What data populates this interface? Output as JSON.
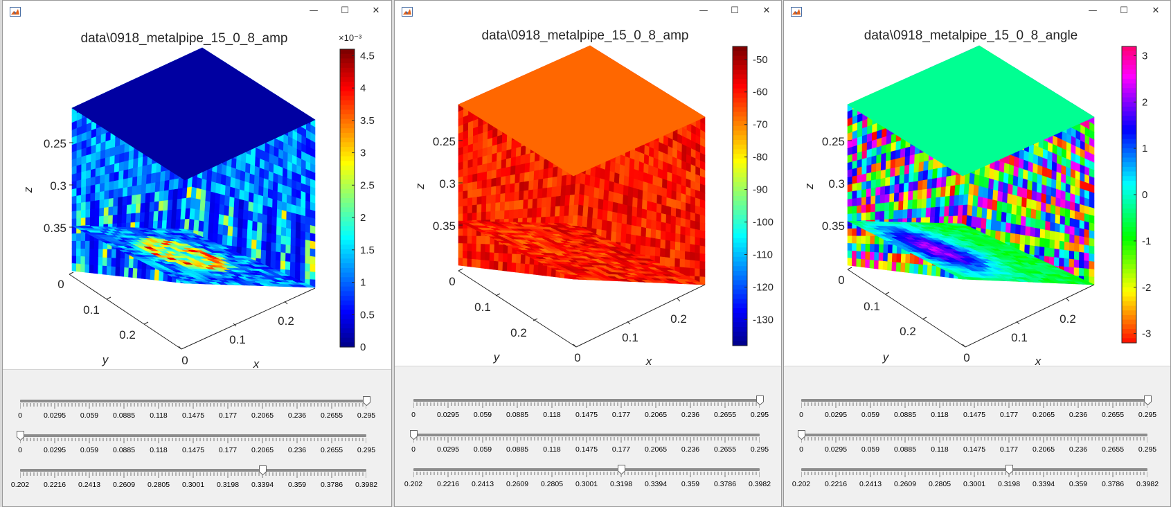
{
  "windows": [
    {
      "id": "w1",
      "title": "data\\0918_metalpipe_15_0_8_amp",
      "colormap": "jet",
      "field": "amp",
      "colorbar": {
        "ticks": [
          "0",
          "0.5",
          "1",
          "1.5",
          "2",
          "2.5",
          "3",
          "3.5",
          "4",
          "4.5"
        ],
        "exponent": "×10⁻³",
        "range": [
          0,
          4.6
        ]
      },
      "axes": {
        "z_ticks": [
          "0.25",
          "0.3",
          "0.35"
        ],
        "y_ticks": [
          "0",
          "0.1",
          "0.2"
        ],
        "x_ticks": [
          "0",
          "0.1",
          "0.2"
        ],
        "xlabel": "x",
        "ylabel": "y",
        "zlabel": "z"
      },
      "sliders": [
        {
          "labels": [
            "0",
            "0.0295",
            "0.059",
            "0.0885",
            "0.118",
            "0.1475",
            "0.177",
            "0.2065",
            "0.236",
            "0.2655",
            "0.295"
          ],
          "value": 0.295,
          "min": 0,
          "max": 0.295
        },
        {
          "labels": [
            "0",
            "0.0295",
            "0.059",
            "0.0885",
            "0.118",
            "0.1475",
            "0.177",
            "0.2065",
            "0.236",
            "0.2655",
            "0.295"
          ],
          "value": 0,
          "min": 0,
          "max": 0.295
        },
        {
          "labels": [
            "0.202",
            "0.2216",
            "0.2413",
            "0.2609",
            "0.2805",
            "0.3001",
            "0.3198",
            "0.3394",
            "0.359",
            "0.3786",
            "0.3982"
          ],
          "value": 0.3394,
          "min": 0.202,
          "max": 0.3982
        }
      ]
    },
    {
      "id": "w2",
      "title": "data\\0918_metalpipe_15_0_8_amp",
      "colormap": "jet",
      "field": "db",
      "colorbar": {
        "ticks": [
          "-50",
          "-60",
          "-70",
          "-80",
          "-90",
          "-100",
          "-110",
          "-120",
          "-130"
        ],
        "exponent": "",
        "range": [
          -138,
          -46
        ]
      },
      "axes": {
        "z_ticks": [
          "0.25",
          "0.3",
          "0.35"
        ],
        "y_ticks": [
          "0",
          "0.1",
          "0.2"
        ],
        "x_ticks": [
          "0",
          "0.1",
          "0.2"
        ],
        "xlabel": "x",
        "ylabel": "y",
        "zlabel": "z"
      },
      "sliders": [
        {
          "labels": [
            "0",
            "0.0295",
            "0.059",
            "0.0885",
            "0.118",
            "0.1475",
            "0.177",
            "0.2065",
            "0.236",
            "0.2655",
            "0.295"
          ],
          "value": 0.295,
          "min": 0,
          "max": 0.295
        },
        {
          "labels": [
            "0",
            "0.0295",
            "0.059",
            "0.0885",
            "0.118",
            "0.1475",
            "0.177",
            "0.2065",
            "0.236",
            "0.2655",
            "0.295"
          ],
          "value": 0,
          "min": 0,
          "max": 0.295
        },
        {
          "labels": [
            "0.202",
            "0.2216",
            "0.2413",
            "0.2609",
            "0.2805",
            "0.3001",
            "0.3198",
            "0.3394",
            "0.359",
            "0.3786",
            "0.3982"
          ],
          "value": 0.3198,
          "min": 0.202,
          "max": 0.3982
        }
      ]
    },
    {
      "id": "w3",
      "title": "data\\0918_metalpipe_15_0_8_angle",
      "colormap": "hsv",
      "field": "angle",
      "colorbar": {
        "ticks": [
          "3",
          "2",
          "1",
          "0",
          "-1",
          "-2",
          "-3"
        ],
        "exponent": "",
        "range": [
          -3.2,
          3.2
        ]
      },
      "axes": {
        "z_ticks": [
          "0.25",
          "0.3",
          "0.35"
        ],
        "y_ticks": [
          "0",
          "0.1",
          "0.2"
        ],
        "x_ticks": [
          "0",
          "0.1",
          "0.2"
        ],
        "xlabel": "x",
        "ylabel": "y",
        "zlabel": "z"
      },
      "sliders": [
        {
          "labels": [
            "0",
            "0.0295",
            "0.059",
            "0.0885",
            "0.118",
            "0.1475",
            "0.177",
            "0.2065",
            "0.236",
            "0.2655",
            "0.295"
          ],
          "value": 0.295,
          "min": 0,
          "max": 0.295
        },
        {
          "labels": [
            "0",
            "0.0295",
            "0.059",
            "0.0885",
            "0.118",
            "0.1475",
            "0.177",
            "0.2065",
            "0.236",
            "0.2655",
            "0.295"
          ],
          "value": 0,
          "min": 0,
          "max": 0.295
        },
        {
          "labels": [
            "0.202",
            "0.2216",
            "0.2413",
            "0.2609",
            "0.2805",
            "0.3001",
            "0.3198",
            "0.3394",
            "0.359",
            "0.3786",
            "0.3982"
          ],
          "value": 0.3198,
          "min": 0.202,
          "max": 0.3982
        }
      ]
    }
  ],
  "window_controls": {
    "minimize": "—",
    "maximize": "☐",
    "close": "✕"
  }
}
